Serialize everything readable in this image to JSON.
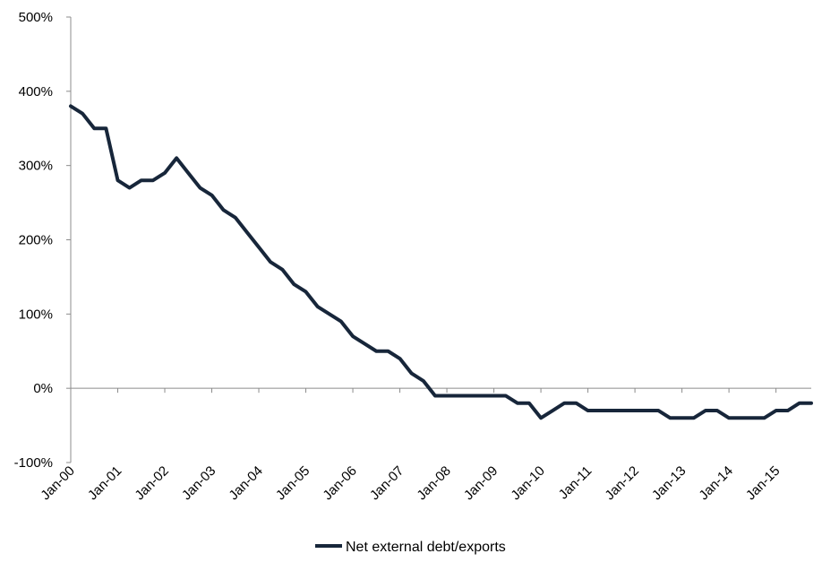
{
  "chart_data": {
    "type": "line",
    "title": "",
    "xlabel": "",
    "ylabel": "",
    "ylim": [
      -100,
      500
    ],
    "y_tick_labels": [
      "-100%",
      "0%",
      "100%",
      "200%",
      "300%",
      "400%",
      "500%"
    ],
    "y_ticks": [
      -100,
      0,
      100,
      200,
      300,
      400,
      500
    ],
    "x_tick_labels": [
      "Jan-00",
      "Jan-01",
      "Jan-02",
      "Jan-03",
      "Jan-04",
      "Jan-05",
      "Jan-06",
      "Jan-07",
      "Jan-08",
      "Jan-09",
      "Jan-10",
      "Jan-11",
      "Jan-12",
      "Jan-13",
      "Jan-14",
      "Jan-15"
    ],
    "x_tick_positions": [
      0,
      4,
      8,
      12,
      16,
      20,
      24,
      28,
      32,
      36,
      40,
      44,
      48,
      52,
      56,
      60
    ],
    "grid": false,
    "legend_position": "bottom",
    "line_color": "#17263a",
    "series": [
      {
        "name": "Net external debt/exports",
        "values": [
          380,
          370,
          350,
          350,
          280,
          270,
          280,
          280,
          290,
          310,
          290,
          270,
          260,
          240,
          230,
          210,
          190,
          170,
          160,
          140,
          130,
          110,
          100,
          90,
          70,
          60,
          50,
          50,
          40,
          20,
          10,
          -10,
          -10,
          -10,
          -10,
          -10,
          -10,
          -10,
          -20,
          -20,
          -40,
          -30,
          -20,
          -20,
          -30,
          -30,
          -30,
          -30,
          -30,
          -30,
          -30,
          -40,
          -40,
          -40,
          -30,
          -30,
          -40,
          -40,
          -40,
          -40,
          -30,
          -30,
          -20,
          -20
        ]
      }
    ]
  }
}
